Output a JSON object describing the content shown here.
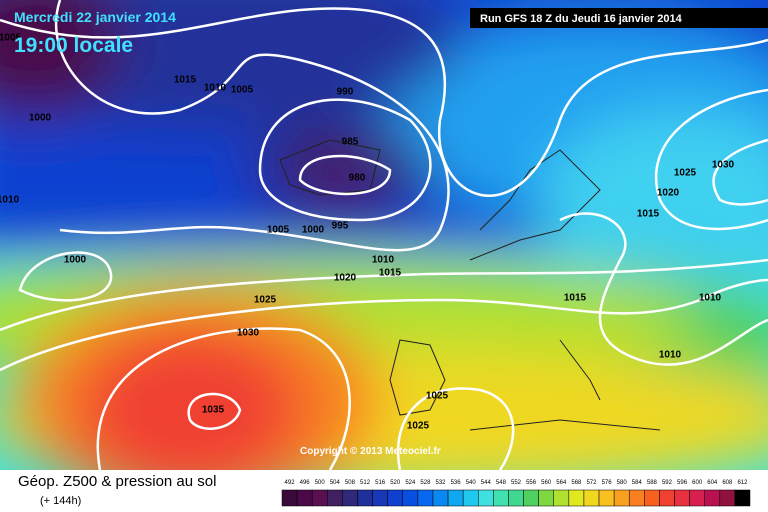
{
  "header": {
    "date": "Mercredi 22 janvier 2014",
    "time": "19:00 locale",
    "run": "Run GFS 18 Z du Jeudi 16 janvier 2014"
  },
  "copyright": "Copyright © 2013 Meteociel.fr",
  "footer": {
    "title": "Géop. Z500 & pression au sol",
    "subtitle": "(+ 144h)"
  },
  "isobar_labels": [
    "1005",
    "1015",
    "1010",
    "1005",
    "1000",
    "990",
    "985",
    "980",
    "1010",
    "1005",
    "1000",
    "995",
    "1000",
    "1010",
    "1015",
    "1020",
    "1025",
    "1030",
    "1035",
    "1025",
    "1025",
    "1015",
    "1010",
    "1010",
    "1030",
    "1025",
    "1020",
    "1015"
  ],
  "scale": {
    "labels": [
      "492",
      "496",
      "500",
      "504",
      "508",
      "512",
      "516",
      "520",
      "524",
      "528",
      "532",
      "536",
      "540",
      "544",
      "548",
      "552",
      "556",
      "560",
      "564",
      "568",
      "572",
      "576",
      "580",
      "584",
      "588",
      "592",
      "596",
      "600",
      "604",
      "608",
      "612"
    ],
    "colors": [
      "#3a0a3a",
      "#4a0a4a",
      "#5a1050",
      "#402060",
      "#302878",
      "#20309a",
      "#1838b8",
      "#1040d0",
      "#0850e0",
      "#0868f0",
      "#0888f0",
      "#10a8f0",
      "#20c8f0",
      "#40e0e0",
      "#40e0b0",
      "#40d890",
      "#50d060",
      "#80d840",
      "#b0e030",
      "#e0e820",
      "#f0d820",
      "#f8c020",
      "#f8a020",
      "#f88020",
      "#f86020",
      "#f04030",
      "#e83040",
      "#d82050",
      "#b81050",
      "#901040",
      "#000000"
    ]
  }
}
